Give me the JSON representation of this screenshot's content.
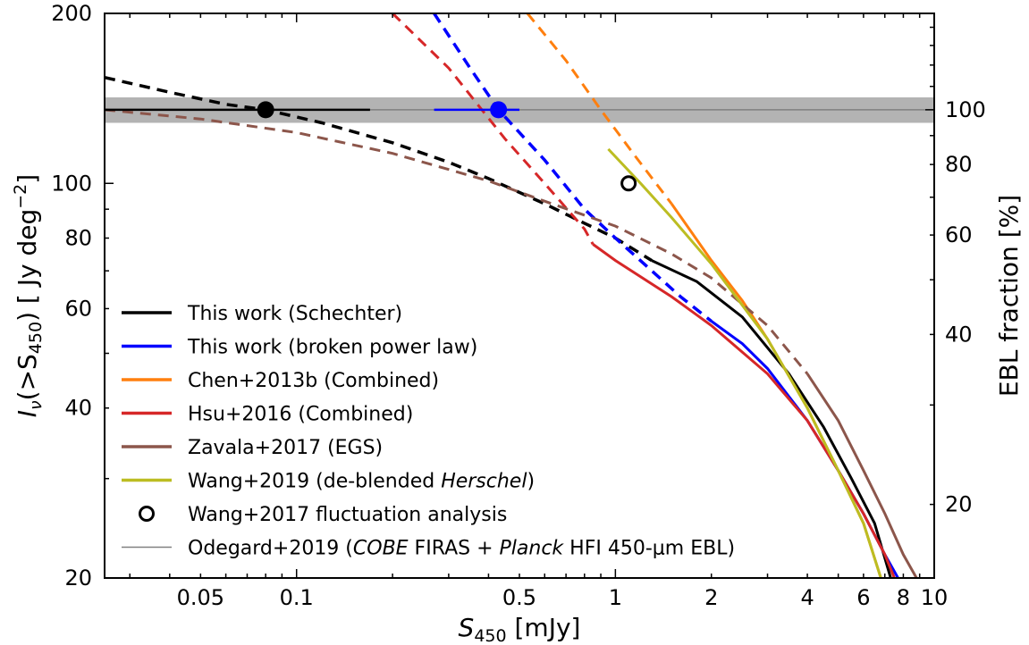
{
  "chart_data": {
    "type": "line",
    "xlabel": {
      "main": "S",
      "sub": "450",
      "unit": " [mJy]"
    },
    "ylabel": {
      "prefix": "I",
      "nu": "ν",
      "open": "(>S",
      "sub": "450",
      "close": ") [ Jy deg",
      "sup": "−2",
      "end": "]"
    },
    "y2label": "EBL fraction [%]",
    "x_scale": "log",
    "y_scale": "log",
    "xlim": [
      0.025,
      10
    ],
    "ylim": [
      20,
      200
    ],
    "y2_ref": 135,
    "x_ticks": [
      {
        "v": 0.05,
        "label": "0.05"
      },
      {
        "v": 0.1,
        "label": "0.1"
      },
      {
        "v": 0.5,
        "label": "0.5"
      },
      {
        "v": 1,
        "label": "1"
      },
      {
        "v": 2,
        "label": "2"
      },
      {
        "v": 4,
        "label": "4"
      },
      {
        "v": 6,
        "label": "6"
      },
      {
        "v": 8,
        "label": "8"
      },
      {
        "v": 10,
        "label": "10"
      }
    ],
    "y_ticks": [
      {
        "v": 20,
        "label": "20"
      },
      {
        "v": 40,
        "label": "40"
      },
      {
        "v": 60,
        "label": "60"
      },
      {
        "v": 80,
        "label": "80"
      },
      {
        "v": 100,
        "label": "100"
      },
      {
        "v": 200,
        "label": "200"
      }
    ],
    "y2_ticks": [
      {
        "v": 20,
        "label": "20"
      },
      {
        "v": 40,
        "label": "40"
      },
      {
        "v": 60,
        "label": "60"
      },
      {
        "v": 80,
        "label": "80"
      },
      {
        "v": 100,
        "label": "100"
      }
    ],
    "ebl_band": {
      "y_low": 128,
      "y_high": 142,
      "y_value": 135,
      "color": "#b3b3b3"
    },
    "series": [
      {
        "key": "schechter",
        "color": "#000000",
        "dashed": [
          [
            0.025,
            154
          ],
          [
            0.04,
            145
          ],
          [
            0.06,
            138
          ],
          [
            0.08,
            135
          ],
          [
            0.12,
            128
          ],
          [
            0.2,
            118
          ],
          [
            0.3,
            109
          ],
          [
            0.4,
            102
          ],
          [
            0.6,
            92
          ],
          [
            0.8,
            85
          ],
          [
            1.0,
            80
          ],
          [
            1.3,
            73
          ]
        ],
        "solid": [
          [
            1.3,
            73
          ],
          [
            1.8,
            67
          ],
          [
            2.5,
            58
          ],
          [
            3.5,
            46
          ],
          [
            4.5,
            37
          ],
          [
            5.5,
            30
          ],
          [
            6.5,
            25
          ],
          [
            7.3,
            20
          ]
        ]
      },
      {
        "key": "broken",
        "color": "#0000ff",
        "dashed": [
          [
            0.27,
            200
          ],
          [
            0.35,
            160
          ],
          [
            0.43,
            135
          ],
          [
            0.6,
            110
          ],
          [
            0.8,
            90
          ],
          [
            1.0,
            80
          ],
          [
            1.3,
            70
          ],
          [
            1.6,
            63
          ],
          [
            2.0,
            57
          ]
        ],
        "solid": [
          [
            2.0,
            57
          ],
          [
            2.5,
            52
          ],
          [
            3.0,
            47
          ],
          [
            4.0,
            38
          ],
          [
            5.0,
            31
          ],
          [
            6.0,
            26
          ],
          [
            7.0,
            22
          ],
          [
            7.7,
            20
          ]
        ]
      },
      {
        "key": "chen",
        "color": "#ff7f0e",
        "dashed": [
          [
            0.53,
            200
          ],
          [
            0.7,
            165
          ],
          [
            0.9,
            135
          ],
          [
            1.15,
            112
          ],
          [
            1.5,
            92
          ]
        ],
        "solid": [
          [
            1.5,
            92
          ],
          [
            2.0,
            73
          ],
          [
            2.5,
            62
          ],
          [
            3.0,
            53
          ],
          [
            4.0,
            40
          ],
          [
            5.0,
            31
          ],
          [
            6.0,
            25
          ],
          [
            6.8,
            20
          ]
        ]
      },
      {
        "key": "hsu",
        "color": "#d62728",
        "dashed": [
          [
            0.2,
            200
          ],
          [
            0.3,
            160
          ],
          [
            0.45,
            120
          ],
          [
            0.6,
            100
          ],
          [
            0.8,
            83
          ],
          [
            0.85,
            78
          ]
        ],
        "solid": [
          [
            0.85,
            78
          ],
          [
            1.0,
            73
          ],
          [
            1.5,
            63
          ],
          [
            2.0,
            56
          ],
          [
            3.0,
            46
          ],
          [
            4.0,
            38
          ],
          [
            5.0,
            31
          ],
          [
            6.0,
            26
          ],
          [
            7.0,
            22
          ],
          [
            7.5,
            20
          ]
        ]
      },
      {
        "key": "zavala",
        "color": "#8c564b",
        "dashed": [
          [
            0.025,
            135
          ],
          [
            0.05,
            130
          ],
          [
            0.1,
            123
          ],
          [
            0.2,
            113
          ],
          [
            0.4,
            101
          ],
          [
            0.6,
            93
          ],
          [
            1.0,
            84
          ],
          [
            1.5,
            75
          ],
          [
            2.0,
            68
          ],
          [
            3.0,
            56
          ],
          [
            4.0,
            46
          ]
        ],
        "solid": [
          [
            4.0,
            46
          ],
          [
            5.0,
            38
          ],
          [
            6.0,
            31
          ],
          [
            7.0,
            26
          ],
          [
            8.0,
            22
          ],
          [
            8.8,
            20
          ]
        ]
      },
      {
        "key": "wang19",
        "color": "#bcbd22",
        "dashed": [],
        "solid": [
          [
            0.95,
            115
          ],
          [
            1.2,
            100
          ],
          [
            1.5,
            87
          ],
          [
            2.0,
            72
          ],
          [
            3.0,
            53
          ],
          [
            4.0,
            40
          ],
          [
            5.0,
            31
          ],
          [
            6.0,
            25
          ],
          [
            6.8,
            20
          ]
        ]
      }
    ],
    "points": [
      {
        "key": "schechter_pt",
        "x": 0.08,
        "y": 135,
        "xerr": [
          0.025,
          0.17
        ],
        "color": "#000000"
      },
      {
        "key": "broken_pt",
        "x": 0.43,
        "y": 135,
        "xerr": [
          0.27,
          0.5
        ],
        "color": "#0000ff"
      },
      {
        "key": "wang17_pt",
        "x": 1.1,
        "y": 100,
        "hollow": true,
        "color": "#000000"
      }
    ],
    "legend": {
      "placement": "lower-left",
      "items": [
        {
          "key": "schechter",
          "type": "line",
          "color": "#000000",
          "parts": [
            {
              "t": "This work (Schechter)"
            }
          ]
        },
        {
          "key": "broken",
          "type": "line",
          "color": "#0000ff",
          "parts": [
            {
              "t": "This work (broken power law)"
            }
          ]
        },
        {
          "key": "chen",
          "type": "line",
          "color": "#ff7f0e",
          "parts": [
            {
              "t": "Chen+2013b (Combined)"
            }
          ]
        },
        {
          "key": "hsu",
          "type": "line",
          "color": "#d62728",
          "parts": [
            {
              "t": "Hsu+2016 (Combined)"
            }
          ]
        },
        {
          "key": "zavala",
          "type": "line",
          "color": "#8c564b",
          "parts": [
            {
              "t": "Zavala+2017 (EGS)"
            }
          ]
        },
        {
          "key": "wang19",
          "type": "line",
          "color": "#bcbd22",
          "parts": [
            {
              "t": "Wang+2019 (de-blended "
            },
            {
              "t": "Herschel",
              "i": true
            },
            {
              "t": ")"
            }
          ]
        },
        {
          "key": "wang17",
          "type": "marker",
          "color": "#000000",
          "parts": [
            {
              "t": "Wang+2017 fluctuation analysis"
            }
          ]
        },
        {
          "key": "odegard",
          "type": "thin",
          "color": "#808080",
          "parts": [
            {
              "t": "Odegard+2019 ("
            },
            {
              "t": "COBE",
              "i": true
            },
            {
              "t": " FIRAS + "
            },
            {
              "t": "Planck",
              "i": true
            },
            {
              "t": " HFI 450-μm EBL)"
            }
          ]
        }
      ]
    }
  }
}
